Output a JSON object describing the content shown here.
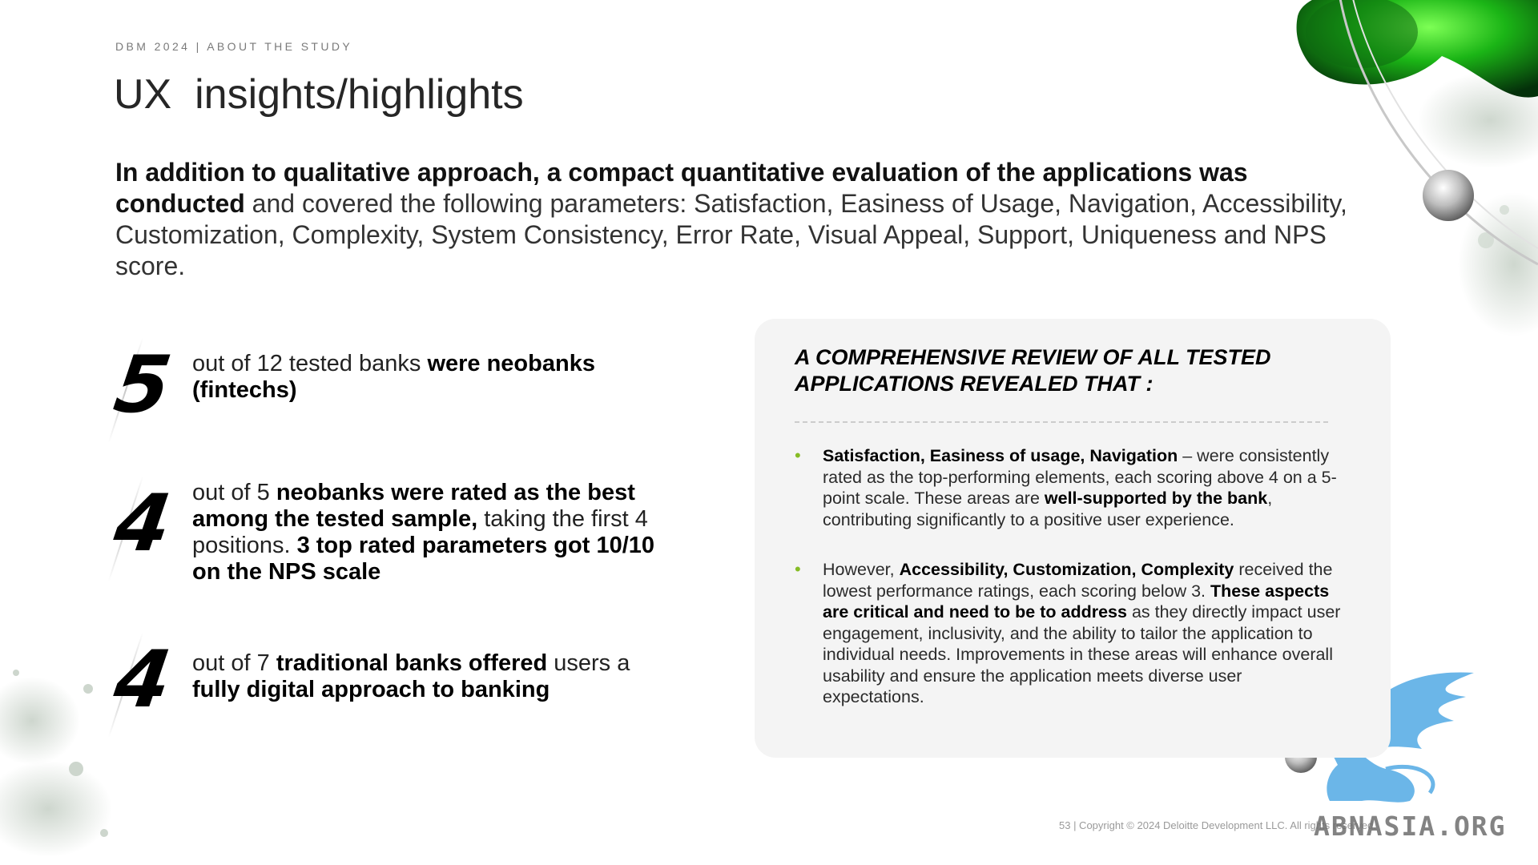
{
  "header": {
    "overline": "DBM 2024 | ABOUT THE STUDY",
    "title": "UX  insights/highlights"
  },
  "lead": {
    "bold": "In addition to qualitative approach, a compact quantitative evaluation of the applications was conducted",
    "normal": " and covered the following parameters: Satisfaction, Easiness of Usage, Navigation, Accessibility, Customization, Complexity, System Consistency, Error Rate, Visual Appeal, Support, Uniqueness and NPS score."
  },
  "stats": [
    {
      "number": "5",
      "t1": "out of 12 tested banks ",
      "b1": "were neobanks (fintechs)"
    },
    {
      "number": "4",
      "t1": "out of 5 ",
      "b1": "neobanks were rated as the best among the tested sample,",
      "t2": " taking the first 4 positions. ",
      "b2": "3 top rated parameters got 10/10 on the NPS scale"
    },
    {
      "number": "4",
      "t1": "out of 7 ",
      "b1": "traditional banks offered",
      "t2": " users a ",
      "b2": "fully digital approach to banking"
    }
  ],
  "panel": {
    "heading": "A comprehensive review of all tested applications revealed that :",
    "bullet_glyph": "•",
    "items": [
      {
        "b1": "Satisfaction, Easiness of usage, Navigation",
        "t1": " – were consistently rated as the top-performing elements, each scoring above 4 on a 5-point scale. These areas are ",
        "b2": "well-supported by the bank",
        "t2": ", contributing significantly to a positive user experience."
      },
      {
        "t0": "However, ",
        "b1": "Accessibility, Customization, Complexity",
        "t1": " received the lowest performance ratings, each scoring below 3. ",
        "b2": "These aspects are critical and need to be to address",
        "t2": " as they directly impact user engagement, inclusivity, and the ability to tailor the application to individual needs. Improvements in these areas will enhance overall usability and ensure the application meets diverse user expectations."
      }
    ]
  },
  "footer": {
    "text": "53 | Copyright © 2024 Deloitte Development LLC. All rights reserved."
  },
  "watermark": {
    "text": "ABNASIA.ORG"
  },
  "colors": {
    "bullet": "#86bc25",
    "orb_green": "#2fd11a",
    "griffin_blue": "#6bb6e8",
    "panel_bg": "#f4f4f4"
  },
  "decorations": {
    "top_right": "green-orb-with-silver-rings",
    "bottom_left": "grey-splatter",
    "bottom_right": "blue-griffin-logo"
  }
}
